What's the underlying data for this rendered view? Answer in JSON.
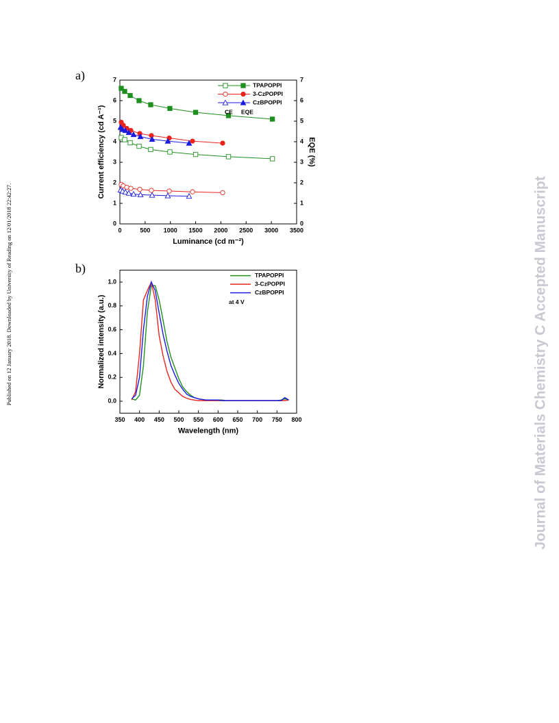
{
  "side_note": "Published on 12 January 2018. Downloaded by University of Reading on 12/01/2018 22:42:27.",
  "watermark": "Journal of Materials Chemistry C Accepted Manuscript",
  "panels": [
    "a)",
    "b)"
  ],
  "chart_data": [
    {
      "type": "line",
      "xlabel": "Luminance (cd m⁻²)",
      "ylabel": "Current efficiency (cd A⁻¹)",
      "y2label": "EQE (%)",
      "xlim": [
        0,
        3500
      ],
      "xticks": [
        0,
        500,
        1000,
        1500,
        2000,
        2500,
        3000,
        3500
      ],
      "ylim": [
        0,
        7
      ],
      "yticks": [
        0,
        1,
        2,
        3,
        4,
        5,
        6,
        7
      ],
      "y2lim": [
        0,
        7
      ],
      "y2ticks": [
        0,
        1,
        2,
        3,
        4,
        5,
        6,
        7
      ],
      "legend_headers": [
        "CE",
        "EQE"
      ],
      "series": [
        {
          "name": "TPAPOPPI",
          "color": "#1f8f1f",
          "marker": "square",
          "x": [
            27,
            95,
            204,
            380,
            610,
            990,
            1500,
            2150,
            3020
          ],
          "values": [
            4.2,
            4.1,
            3.95,
            3.78,
            3.62,
            3.5,
            3.38,
            3.27,
            3.17
          ],
          "y2_values": [
            6.6,
            6.45,
            6.25,
            6.0,
            5.8,
            5.62,
            5.43,
            5.27,
            5.1
          ]
        },
        {
          "name": "3-CzPOPPI",
          "color": "#e8241c",
          "marker": "circle",
          "x": [
            27,
            68,
            136,
            217,
            394,
            624,
            977,
            1438,
            2035
          ],
          "values": [
            1.92,
            1.85,
            1.78,
            1.73,
            1.68,
            1.63,
            1.6,
            1.56,
            1.52
          ],
          "y2_values": [
            4.95,
            4.8,
            4.65,
            4.55,
            4.4,
            4.3,
            4.18,
            4.03,
            3.93
          ]
        },
        {
          "name": "CzBPOPPI",
          "color": "#1a1ae0",
          "marker": "triangle",
          "x": [
            14,
            54,
            109,
            176,
            271,
            407,
            638,
            950,
            1370
          ],
          "values": [
            1.65,
            1.6,
            1.55,
            1.5,
            1.45,
            1.42,
            1.4,
            1.37,
            1.35
          ],
          "y2_values": [
            4.7,
            4.6,
            4.55,
            4.45,
            4.35,
            4.25,
            4.12,
            4.03,
            3.93
          ]
        }
      ]
    },
    {
      "type": "line",
      "xlabel": "Wavelength (nm)",
      "ylabel": "Normalized intensity (a.u.)",
      "xlim": [
        350,
        800
      ],
      "xticks": [
        350,
        400,
        450,
        500,
        550,
        600,
        650,
        700,
        750,
        800
      ],
      "ylim": [
        -0.1,
        1.1
      ],
      "yticks": [
        {
          "value": 0,
          "label": "0.0"
        },
        0.2,
        0.4,
        0.6,
        0.8,
        {
          "value": 1,
          "label": "1.0"
        }
      ],
      "annotation": "at 4 V",
      "x": [
        380,
        390,
        400,
        410,
        420,
        430,
        440,
        450,
        460,
        470,
        480,
        490,
        500,
        510,
        520,
        530,
        540,
        550,
        560,
        570,
        580,
        590,
        600,
        610,
        620,
        630,
        640,
        650,
        660,
        670,
        680,
        690,
        700,
        710,
        720,
        730,
        740,
        750,
        760,
        770,
        780
      ],
      "series": [
        {
          "name": "TPAPOPPI",
          "color": "#1f8f1f",
          "values": [
            0.02,
            0.01,
            0.05,
            0.3,
            0.75,
            0.97,
            0.97,
            0.85,
            0.68,
            0.5,
            0.37,
            0.28,
            0.19,
            0.12,
            0.08,
            0.05,
            0.03,
            0.02,
            0.015,
            0.01,
            0.01,
            0.01,
            0.01,
            0.01,
            0.005,
            0.005,
            0.005,
            0.005,
            0.005,
            0.005,
            0.005,
            0.005,
            0.005,
            0.005,
            0.005,
            0.005,
            0.005,
            0.005,
            0.01,
            0.02,
            0.01
          ]
        },
        {
          "name": "3-CzPOPPI",
          "color": "#e8241c",
          "values": [
            0.01,
            0.08,
            0.4,
            0.85,
            0.93,
            1.0,
            0.85,
            0.55,
            0.38,
            0.25,
            0.16,
            0.1,
            0.07,
            0.04,
            0.025,
            0.015,
            0.01,
            0.005,
            0.005,
            0.005,
            0.005,
            0.005,
            0.005,
            0.005,
            0.005,
            0.005,
            0.005,
            0.005,
            0.005,
            0.005,
            0.005,
            0.005,
            0.005,
            0.005,
            0.005,
            0.005,
            0.005,
            0.005,
            0.005,
            0.005,
            0.01
          ]
        },
        {
          "name": "CzBPOPPI",
          "color": "#1a1ae0",
          "values": [
            0.02,
            0.05,
            0.2,
            0.6,
            0.88,
            1.0,
            0.93,
            0.74,
            0.56,
            0.42,
            0.3,
            0.22,
            0.15,
            0.1,
            0.06,
            0.04,
            0.03,
            0.02,
            0.015,
            0.01,
            0.01,
            0.01,
            0.01,
            0.005,
            0.005,
            0.005,
            0.005,
            0.005,
            0.005,
            0.005,
            0.005,
            0.005,
            0.005,
            0.005,
            0.005,
            0.005,
            0.005,
            0.005,
            0.005,
            0.03,
            0.01
          ]
        }
      ]
    }
  ]
}
